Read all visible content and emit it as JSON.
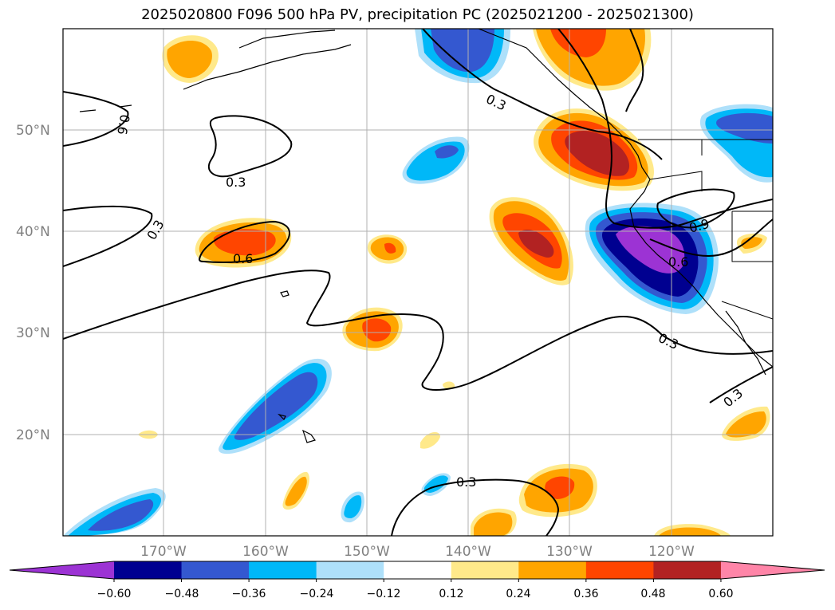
{
  "title": "2025020800 F096 500 hPa PV, precipitation PC (2025021200 - 2025021300)",
  "lat_labels": [
    "50°N",
    "40°N",
    "30°N",
    "20°N"
  ],
  "lon_labels": [
    "170°W",
    "160°W",
    "150°W",
    "140°W",
    "130°W",
    "120°W"
  ],
  "colorbar": {
    "ticks": [
      "−0.60",
      "−0.48",
      "−0.36",
      "−0.24",
      "−0.12",
      "0.12",
      "0.24",
      "0.36",
      "0.48",
      "0.60"
    ],
    "colors": [
      "#9c33d4",
      "#000090",
      "#3458d0",
      "#00b8f8",
      "#aee0fa",
      "#ffffff",
      "#ffe98a",
      "#ffa500",
      "#ff4500",
      "#b22222",
      "#ff85a8"
    ]
  },
  "contour_labels": [
    "0.3",
    "0.3",
    "0.6",
    "0.6",
    "0.3",
    "0.9",
    "0.6",
    "0.3",
    "0.3",
    "0.3"
  ]
}
